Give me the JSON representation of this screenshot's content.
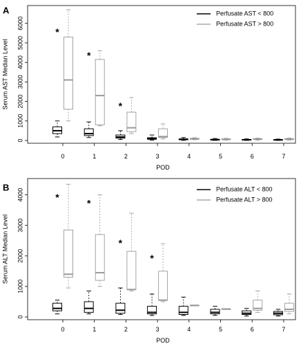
{
  "chart_data": [
    {
      "panel": "A",
      "type": "box",
      "xlabel": "POD",
      "ylabel": "Serum AST Median Level",
      "categories": [
        "0",
        "1",
        "2",
        "3",
        "4",
        "5",
        "6",
        "7"
      ],
      "ylim": [
        0,
        6700
      ],
      "yticks": [
        0,
        1000,
        2000,
        3000,
        4000,
        5000,
        6000
      ],
      "legend_position": "top-right",
      "series": [
        {
          "name": "Perfusate AST < 800",
          "color": "#000000",
          "boxes": [
            {
              "min": 180,
              "q1": 350,
              "median": 500,
              "q3": 700,
              "max": 1000
            },
            {
              "min": 150,
              "q1": 250,
              "median": 350,
              "q3": 600,
              "max": 950
            },
            {
              "min": 50,
              "q1": 120,
              "median": 180,
              "q3": 280,
              "max": 500
            },
            {
              "min": 20,
              "q1": 60,
              "median": 90,
              "q3": 140,
              "max": 280
            },
            {
              "min": 10,
              "q1": 40,
              "median": 60,
              "q3": 80,
              "max": 150
            },
            {
              "min": 5,
              "q1": 25,
              "median": 40,
              "q3": 60,
              "max": 100
            },
            {
              "min": 5,
              "q1": 20,
              "median": 35,
              "q3": 50,
              "max": 80
            },
            {
              "min": 5,
              "q1": 20,
              "median": 30,
              "q3": 45,
              "max": 70
            }
          ]
        },
        {
          "name": "Perfusate AST > 800",
          "color": "#999999",
          "boxes": [
            {
              "min": 1000,
              "q1": 1600,
              "median": 3100,
              "q3": 5300,
              "max": 6700
            },
            {
              "min": 750,
              "q1": 800,
              "median": 2300,
              "q3": 4150,
              "max": 4600
            },
            {
              "min": 350,
              "q1": 450,
              "median": 650,
              "q3": 1450,
              "max": 2200
            },
            {
              "min": 80,
              "q1": 150,
              "median": 200,
              "q3": 600,
              "max": 850
            },
            {
              "min": 40,
              "q1": 60,
              "median": 80,
              "q3": 110,
              "max": 140
            },
            {
              "min": 20,
              "q1": 45,
              "median": 60,
              "q3": 80,
              "max": 110
            },
            {
              "min": 20,
              "q1": 50,
              "median": 70,
              "q3": 95,
              "max": 120
            },
            {
              "min": 20,
              "q1": 50,
              "median": 65,
              "q3": 95,
              "max": 120
            }
          ]
        }
      ],
      "annotations": [
        {
          "text": "*",
          "x": "0",
          "y": 5600
        },
        {
          "text": "*",
          "x": "1",
          "y": 4400
        },
        {
          "text": "*",
          "x": "2",
          "y": 1800
        }
      ]
    },
    {
      "panel": "B",
      "type": "box",
      "xlabel": "POD",
      "ylabel": "Serum ALT Median Level",
      "categories": [
        "0",
        "1",
        "2",
        "3",
        "4",
        "5",
        "6",
        "7"
      ],
      "ylim": [
        0,
        4400
      ],
      "yticks": [
        0,
        1000,
        2000,
        3000,
        4000
      ],
      "legend_position": "top-right",
      "series": [
        {
          "name": "Perfusate ALT < 800",
          "color": "#000000",
          "boxes": [
            {
              "min": 100,
              "q1": 200,
              "median": 280,
              "q3": 450,
              "max": 550
            },
            {
              "min": 100,
              "q1": 150,
              "median": 280,
              "q3": 500,
              "max": 850
            },
            {
              "min": 80,
              "q1": 120,
              "median": 220,
              "q3": 450,
              "max": 950
            },
            {
              "min": 50,
              "q1": 100,
              "median": 150,
              "q3": 350,
              "max": 750
            },
            {
              "min": 50,
              "q1": 80,
              "median": 150,
              "q3": 350,
              "max": 650
            },
            {
              "min": 50,
              "q1": 100,
              "median": 150,
              "q3": 250,
              "max": 350
            },
            {
              "min": 30,
              "q1": 80,
              "median": 120,
              "q3": 200,
              "max": 280
            },
            {
              "min": 30,
              "q1": 70,
              "median": 120,
              "q3": 180,
              "max": 250
            }
          ]
        },
        {
          "name": "Perfusate ALT > 800",
          "color": "#999999",
          "boxes": [
            {
              "min": 950,
              "q1": 1300,
              "median": 1400,
              "q3": 2850,
              "max": 4350
            },
            {
              "min": 1000,
              "q1": 1200,
              "median": 1450,
              "q3": 2700,
              "max": 4000
            },
            {
              "min": 850,
              "q1": 900,
              "median": 900,
              "q3": 2150,
              "max": 3400
            },
            {
              "min": 500,
              "q1": 550,
              "median": 550,
              "q3": 1500,
              "max": 2400
            },
            {
              "min": 380,
              "q1": 380,
              "median": 380,
              "q3": 380,
              "max": 380
            },
            {
              "min": 260,
              "q1": 260,
              "median": 260,
              "q3": 260,
              "max": 260
            },
            {
              "min": 150,
              "q1": 220,
              "median": 280,
              "q3": 550,
              "max": 850
            },
            {
              "min": 100,
              "q1": 180,
              "median": 250,
              "q3": 450,
              "max": 750
            }
          ]
        }
      ],
      "annotations": [
        {
          "text": "*",
          "x": "0",
          "y": 3950
        },
        {
          "text": "*",
          "x": "1",
          "y": 3750
        },
        {
          "text": "*",
          "x": "2",
          "y": 2450
        },
        {
          "text": "*",
          "x": "3",
          "y": 1950
        }
      ]
    }
  ]
}
